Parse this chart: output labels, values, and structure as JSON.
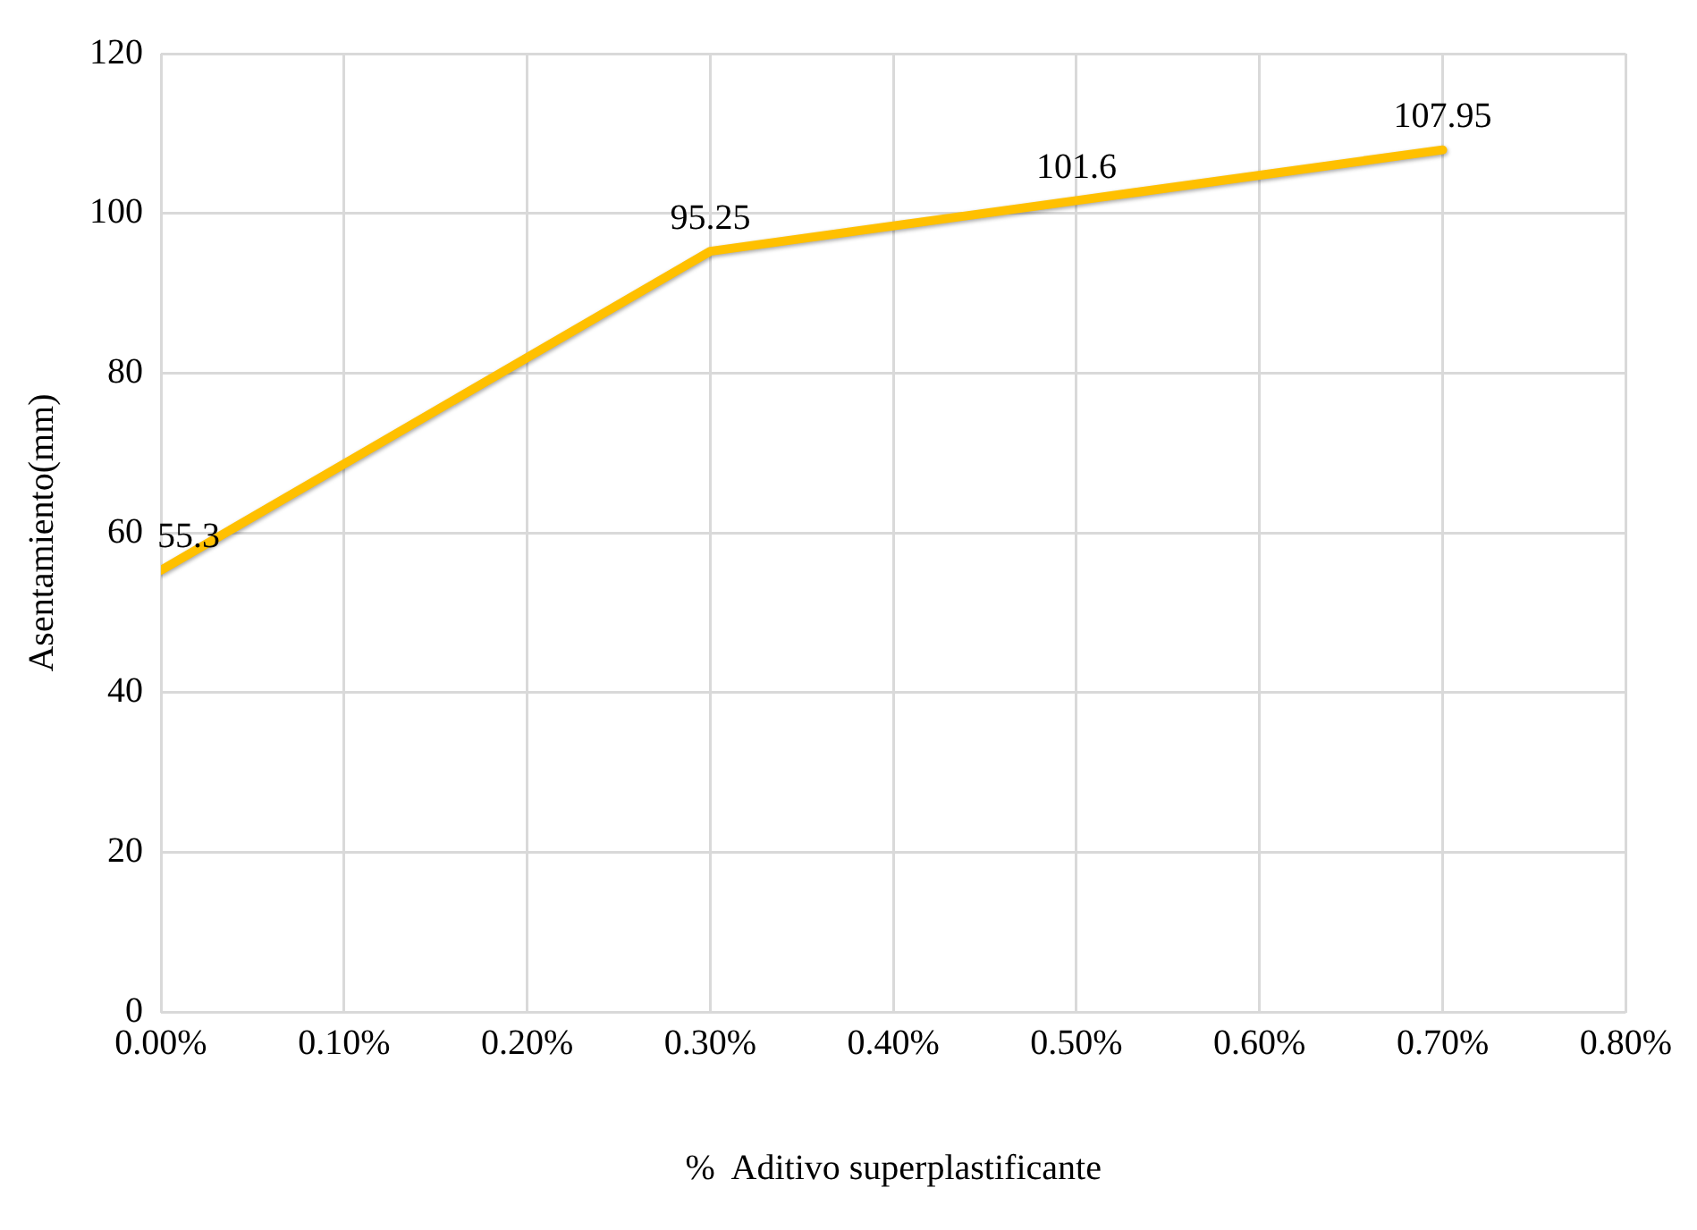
{
  "chart_data": {
    "type": "line",
    "xlabel": "%  Aditivo superplastificante",
    "ylabel": "Asentamiento(mm)",
    "x": [
      0,
      0.3,
      0.5,
      0.7
    ],
    "series": [
      {
        "color": "#ffc000",
        "values": [
          55.3,
          95.25,
          101.6,
          107.95
        ]
      }
    ],
    "xlim": [
      0,
      0.8
    ],
    "xticks": [
      {
        "value": 0,
        "label": "0.00%"
      },
      {
        "value": 0.1,
        "label": "0.10%"
      },
      {
        "value": 0.2,
        "label": "0.20%"
      },
      {
        "value": 0.3,
        "label": "0.30%"
      },
      {
        "value": 0.4,
        "label": "0.40%"
      },
      {
        "value": 0.5,
        "label": "0.50%"
      },
      {
        "value": 0.6,
        "label": "0.60%"
      },
      {
        "value": 0.7,
        "label": "0.70%"
      },
      {
        "value": 0.8,
        "label": "0.80%"
      }
    ],
    "ylim": [
      0,
      120
    ],
    "yticks": [
      0,
      20,
      40,
      60,
      80,
      100,
      120
    ],
    "grid": true,
    "marker": "none",
    "data_labels": true,
    "legend": false
  }
}
